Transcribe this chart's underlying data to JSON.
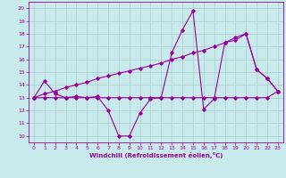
{
  "xlabel": "Windchill (Refroidissement éolien,°C)",
  "bg_color": "#c8eaea",
  "grid_color": "#b0d0d0",
  "line_color": "#990099",
  "xlim": [
    -0.5,
    23.5
  ],
  "ylim": [
    9.5,
    20.5
  ],
  "yticks": [
    10,
    11,
    12,
    13,
    14,
    15,
    16,
    17,
    18,
    19,
    20
  ],
  "xticks": [
    0,
    1,
    2,
    3,
    4,
    5,
    6,
    7,
    8,
    9,
    10,
    11,
    12,
    13,
    14,
    15,
    16,
    17,
    18,
    19,
    20,
    21,
    22,
    23
  ],
  "series1": [
    13.0,
    14.3,
    13.3,
    13.0,
    13.1,
    13.0,
    13.1,
    12.0,
    10.0,
    10.0,
    11.8,
    12.9,
    13.0,
    16.5,
    18.3,
    19.8,
    12.1,
    12.9,
    17.3,
    17.5,
    18.0,
    15.2,
    14.5,
    13.5
  ],
  "series2": [
    13.0,
    13.0,
    13.0,
    13.0,
    13.0,
    13.0,
    13.0,
    13.0,
    13.0,
    13.0,
    13.0,
    13.0,
    13.0,
    13.0,
    13.0,
    13.0,
    13.0,
    13.0,
    13.0,
    13.0,
    13.0,
    13.0,
    13.0,
    13.5
  ],
  "series3": [
    13.0,
    13.3,
    13.5,
    13.8,
    14.0,
    14.2,
    14.5,
    14.7,
    14.9,
    15.1,
    15.3,
    15.5,
    15.7,
    16.0,
    16.2,
    16.5,
    16.7,
    17.0,
    17.3,
    17.7,
    18.0,
    15.2,
    14.5,
    13.5
  ]
}
